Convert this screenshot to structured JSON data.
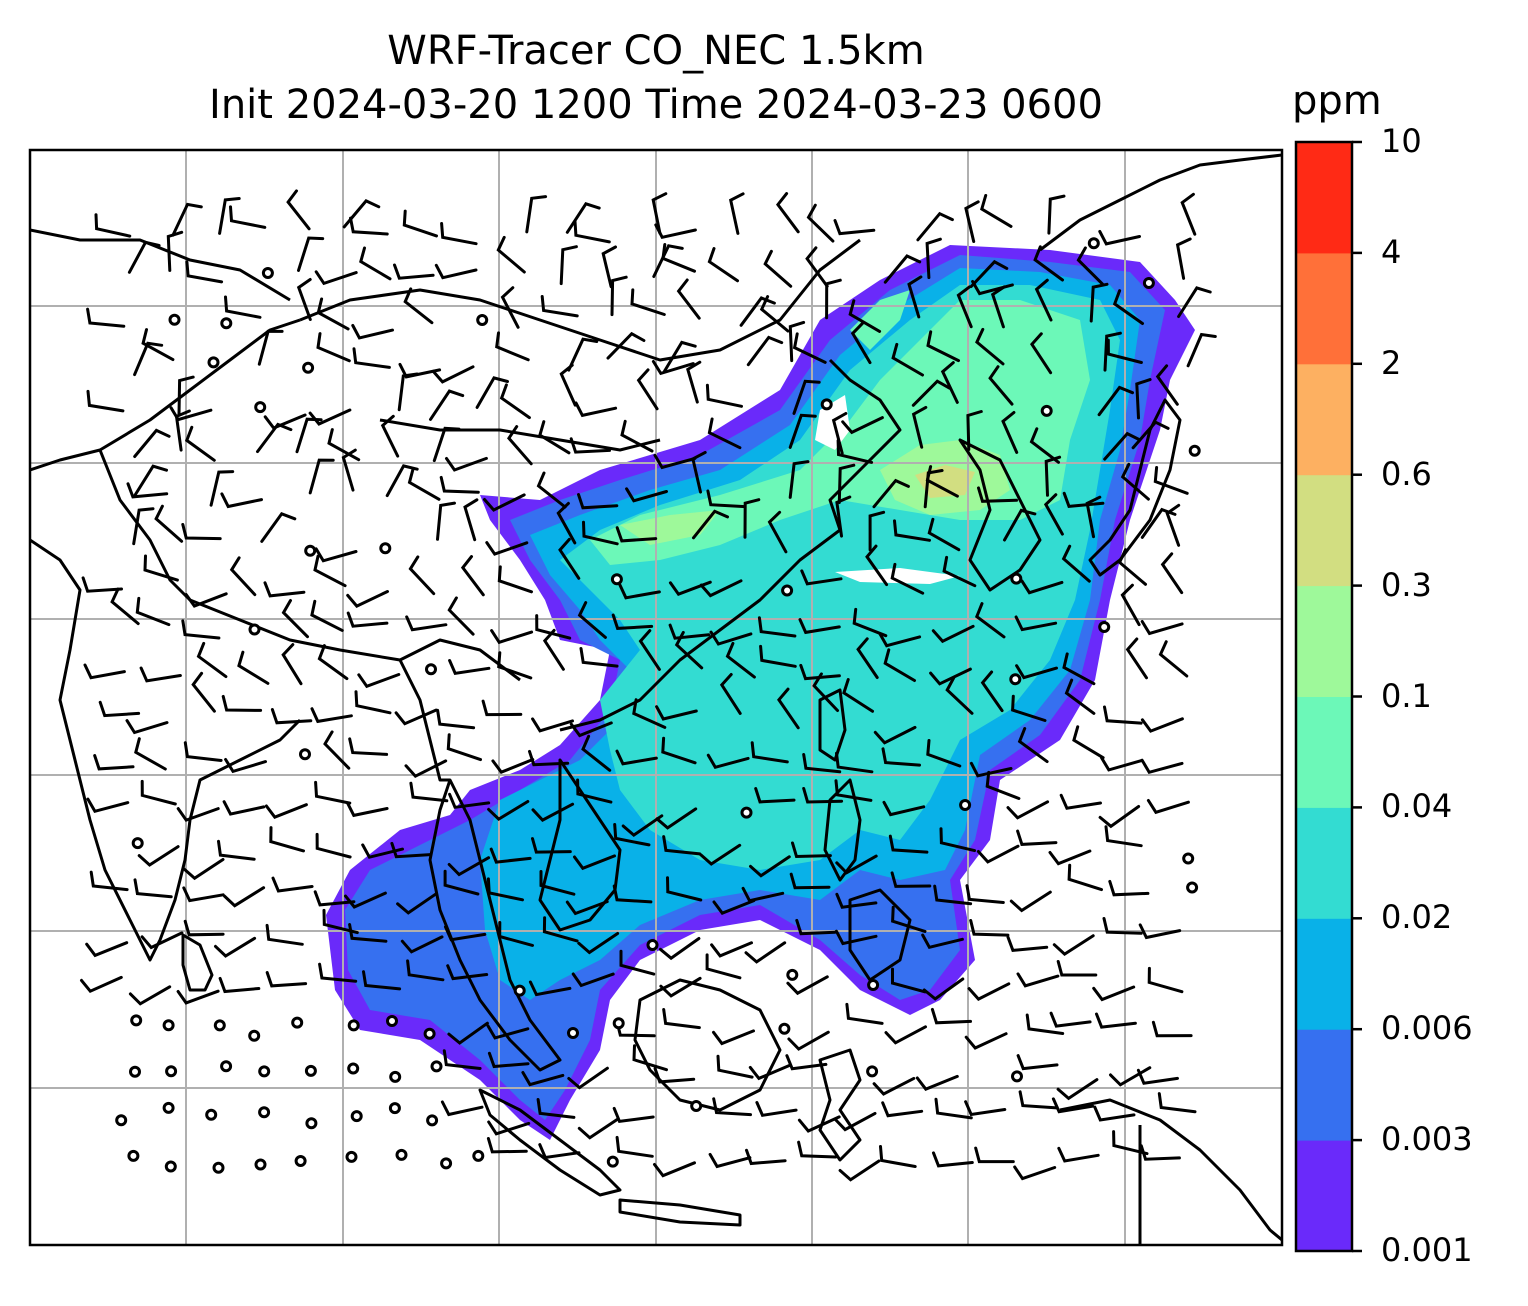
{
  "title": {
    "line1": "WRF-Tracer CO_NEC 1.5km",
    "line2": "Init 2024-03-20 1200 Time 2024-03-23 0600"
  },
  "colorbar": {
    "unit": "ppm",
    "levels": [
      "0.001",
      "0.003",
      "0.006",
      "0.02",
      "0.04",
      "0.1",
      "0.3",
      "0.6",
      "2",
      "4",
      "10"
    ],
    "colors": [
      "#6a2afa",
      "#3670f0",
      "#09b1e8",
      "#33dcd2",
      "#6cf8b8",
      "#9ef99a",
      "#d2de81",
      "#fdb061",
      "#ff7039",
      "#ff2a15"
    ]
  },
  "map": {
    "background": "#ffffff",
    "coastline_color": "#000000",
    "gridline_color": "#b0b0b0",
    "barb_color": "#000000"
  }
}
